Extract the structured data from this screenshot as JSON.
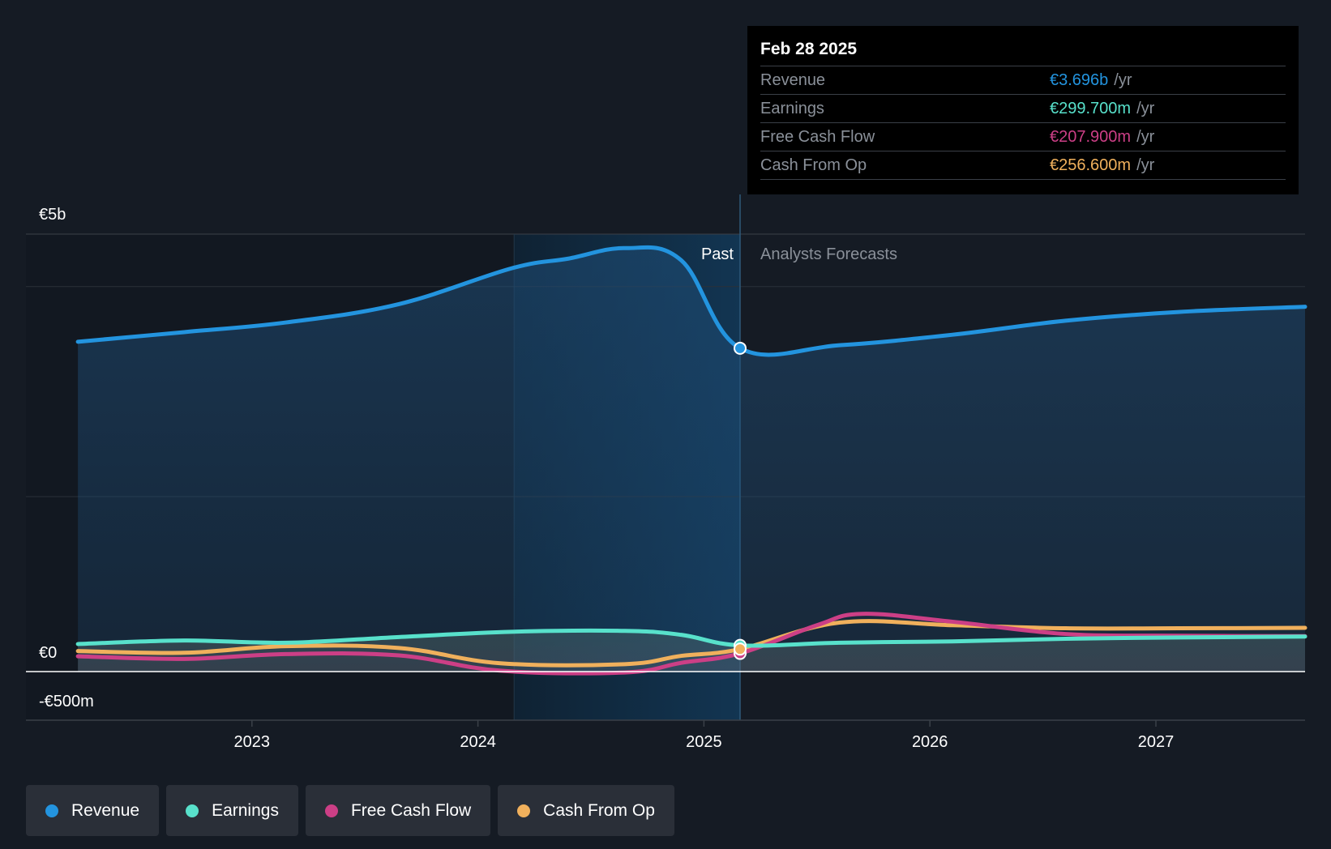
{
  "chart_data": {
    "type": "line",
    "title": "",
    "y_axis": {
      "label_top": "€5b",
      "label_zero": "€0",
      "label_bottom": "-€500m",
      "ylim": [
        -500,
        5000
      ],
      "unit": "€m"
    },
    "x_axis": {
      "ticks": [
        "2023",
        "2024",
        "2025",
        "2026",
        "2027"
      ],
      "tick_values": [
        2023,
        2024,
        2025,
        2026,
        2027
      ],
      "xlim": [
        2022.0,
        2027.66
      ]
    },
    "regions": {
      "past_label": "Past",
      "forecast_label": "Analysts Forecasts",
      "highlight_start": 2024.16,
      "divider": 2025.16
    },
    "series": [
      {
        "key": "revenue",
        "name": "Revenue",
        "color": "#2394df",
        "x": [
          2022.23,
          2022.7,
          2023.15,
          2023.65,
          2024.15,
          2024.4,
          2024.65,
          2024.9,
          2025.16,
          2025.6,
          2026.1,
          2026.6,
          2027.1,
          2027.66
        ],
        "values": [
          3770,
          3880,
          3990,
          4200,
          4610,
          4720,
          4840,
          4700,
          3696,
          3730,
          3850,
          4010,
          4110,
          4170
        ]
      },
      {
        "key": "earnings",
        "name": "Earnings",
        "color": "#58e1cb",
        "x": [
          2022.23,
          2022.7,
          2023.15,
          2023.65,
          2024.15,
          2024.65,
          2024.9,
          2025.16,
          2025.6,
          2026.1,
          2026.6,
          2027.1,
          2027.66
        ],
        "values": [
          315,
          355,
          330,
          395,
          455,
          465,
          420,
          299.7,
          330,
          345,
          375,
          390,
          400
        ]
      },
      {
        "key": "fcf",
        "name": "Free Cash Flow",
        "color": "#cc3f86",
        "x": [
          2022.23,
          2022.7,
          2023.15,
          2023.65,
          2024.1,
          2024.65,
          2024.9,
          2025.16,
          2025.5,
          2025.7,
          2026.1,
          2026.6,
          2027.1,
          2027.66
        ],
        "values": [
          175,
          145,
          200,
          185,
          10,
          -10,
          100,
          207.9,
          530,
          660,
          570,
          430,
          410,
          405
        ]
      },
      {
        "key": "cfo",
        "name": "Cash From Op",
        "color": "#f0b05c",
        "x": [
          2022.23,
          2022.7,
          2023.15,
          2023.65,
          2024.1,
          2024.65,
          2024.9,
          2025.16,
          2025.6,
          2026.1,
          2026.6,
          2027.1,
          2027.66
        ],
        "values": [
          235,
          215,
          290,
          270,
          95,
          85,
          180,
          256.6,
          560,
          530,
          495,
          495,
          500
        ]
      }
    ],
    "highlight_x": 2025.16,
    "tooltip": {
      "date": "Feb 28 2025",
      "rows": [
        {
          "label": "Revenue",
          "value": "€3.696b",
          "unit": "/yr",
          "color": "#2394df"
        },
        {
          "label": "Earnings",
          "value": "€299.700m",
          "unit": "/yr",
          "color": "#58e1cb"
        },
        {
          "label": "Free Cash Flow",
          "value": "€207.900m",
          "unit": "/yr",
          "color": "#cc3f86"
        },
        {
          "label": "Cash From Op",
          "value": "€256.600m",
          "unit": "/yr",
          "color": "#f0b05c"
        }
      ]
    },
    "legend": [
      {
        "label": "Revenue",
        "color": "#2394df"
      },
      {
        "label": "Earnings",
        "color": "#58e1cb"
      },
      {
        "label": "Free Cash Flow",
        "color": "#cc3f86"
      },
      {
        "label": "Cash From Op",
        "color": "#f0b05c"
      }
    ]
  }
}
